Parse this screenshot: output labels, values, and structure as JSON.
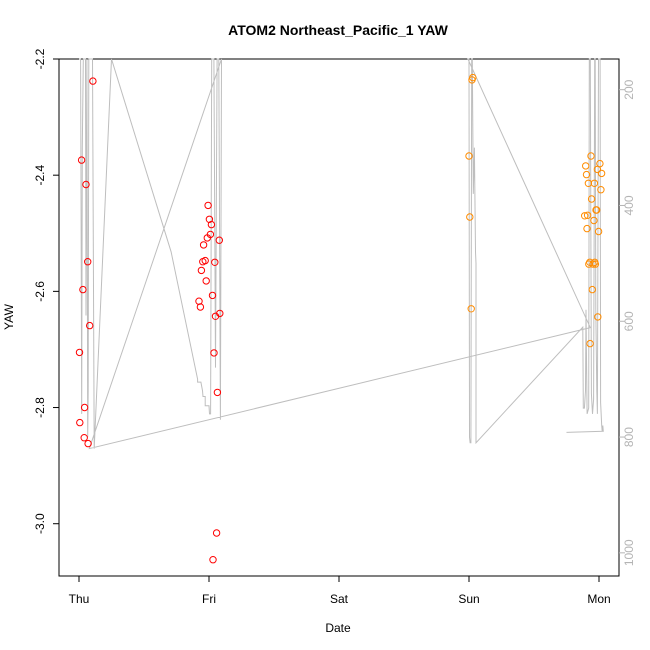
{
  "chart_data": {
    "type": "scatter",
    "title": "ATOM2 Northeast_Pacific_1 YAW",
    "xlabel": "Date",
    "ylabel": "YAW",
    "x_axis": {
      "type": "date",
      "range": [
        "Thu 00:00",
        "Mon 04:00"
      ],
      "tick_labels": [
        "Thu",
        "Fri",
        "Sat",
        "Sun",
        "Mon"
      ],
      "tick_hours": [
        0,
        24,
        48,
        72,
        96
      ]
    },
    "y_axis": {
      "range": [
        -3.09,
        -2.2
      ],
      "ticks": [
        -2.2,
        -2.4,
        -2.6,
        -2.8,
        -3.0
      ],
      "tick_labels": [
        "-2.2",
        "-2.4",
        "-2.6",
        "-2.8",
        "-3.0"
      ]
    },
    "y2_axis": {
      "range": [
        1040,
        147
      ],
      "ticks": [
        200,
        400,
        600,
        800,
        1000
      ],
      "tick_labels": [
        "200",
        "400",
        "600",
        "800",
        "1000"
      ],
      "color": "#b4b4b4"
    },
    "grid": false,
    "colors": {
      "series_red": "#ff0000",
      "series_orange": "#ff8c00",
      "line": "#bebebe",
      "axis": "#000000"
    },
    "series": [
      {
        "color": "#ff0000",
        "points": [
          {
            "x": 0.1,
            "y": -2.705
          },
          {
            "x": 0.15,
            "y": -2.826
          },
          {
            "x": 0.48,
            "y": -2.374
          },
          {
            "x": 0.72,
            "y": -2.597
          },
          {
            "x": 0.96,
            "y": -2.852
          },
          {
            "x": 1.04,
            "y": -2.8
          },
          {
            "x": 1.3,
            "y": -2.416
          },
          {
            "x": 1.6,
            "y": -2.549
          },
          {
            "x": 1.68,
            "y": -2.862
          },
          {
            "x": 1.97,
            "y": -2.659
          },
          {
            "x": 2.56,
            "y": -2.238
          },
          {
            "x": 22.15,
            "y": -2.617
          },
          {
            "x": 22.42,
            "y": -2.627
          },
          {
            "x": 22.6,
            "y": -2.564
          },
          {
            "x": 22.85,
            "y": -2.549
          },
          {
            "x": 23.0,
            "y": -2.52
          },
          {
            "x": 23.29,
            "y": -2.547
          },
          {
            "x": 23.48,
            "y": -2.582
          },
          {
            "x": 23.69,
            "y": -2.508
          },
          {
            "x": 24.25,
            "y": -2.502
          },
          {
            "x": 23.83,
            "y": -2.452
          },
          {
            "x": 24.08,
            "y": -2.476
          },
          {
            "x": 24.45,
            "y": -2.485
          },
          {
            "x": 24.65,
            "y": -2.607
          },
          {
            "x": 24.93,
            "y": -2.706
          },
          {
            "x": 25.07,
            "y": -2.55
          },
          {
            "x": 25.2,
            "y": -2.643
          },
          {
            "x": 25.41,
            "y": -3.016
          },
          {
            "x": 25.55,
            "y": -2.774
          },
          {
            "x": 25.9,
            "y": -2.512
          },
          {
            "x": 26.0,
            "y": -2.638
          },
          {
            "x": 24.74,
            "y": -3.062
          }
        ]
      },
      {
        "color": "#ff8c00",
        "points": [
          {
            "x": 72.0,
            "y": -2.367
          },
          {
            "x": 72.14,
            "y": -2.472
          },
          {
            "x": 72.4,
            "y": -2.63
          },
          {
            "x": 72.55,
            "y": -2.236
          },
          {
            "x": 72.7,
            "y": -2.232
          },
          {
            "x": 93.36,
            "y": -2.47
          },
          {
            "x": 93.55,
            "y": -2.384
          },
          {
            "x": 93.7,
            "y": -2.399
          },
          {
            "x": 93.78,
            "y": -2.492
          },
          {
            "x": 93.9,
            "y": -2.469
          },
          {
            "x": 94.04,
            "y": -2.414
          },
          {
            "x": 94.11,
            "y": -2.553
          },
          {
            "x": 94.3,
            "y": -2.55
          },
          {
            "x": 94.36,
            "y": -2.69
          },
          {
            "x": 94.53,
            "y": -2.367
          },
          {
            "x": 94.64,
            "y": -2.441
          },
          {
            "x": 94.76,
            "y": -2.597
          },
          {
            "x": 94.92,
            "y": -2.553
          },
          {
            "x": 95.05,
            "y": -2.478
          },
          {
            "x": 95.15,
            "y": -2.414
          },
          {
            "x": 95.2,
            "y": -2.55
          },
          {
            "x": 95.33,
            "y": -2.553
          },
          {
            "x": 95.45,
            "y": -2.46
          },
          {
            "x": 95.58,
            "y": -2.46
          },
          {
            "x": 95.7,
            "y": -2.39
          },
          {
            "x": 95.78,
            "y": -2.644
          },
          {
            "x": 95.93,
            "y": -2.497
          },
          {
            "x": 96.17,
            "y": -2.38
          },
          {
            "x": 96.35,
            "y": -2.425
          },
          {
            "x": 96.48,
            "y": -2.397
          }
        ]
      }
    ],
    "y2_line": [
      [
        0.0,
        145
      ],
      [
        0.3,
        145
      ],
      [
        0.5,
        760
      ],
      [
        0.6,
        300
      ],
      [
        0.8,
        145
      ],
      [
        1.2,
        145
      ],
      [
        1.3,
        590
      ],
      [
        1.45,
        145
      ],
      [
        1.6,
        800
      ],
      [
        1.7,
        720
      ],
      [
        1.8,
        145
      ],
      [
        2.5,
        145
      ],
      [
        2.8,
        820
      ],
      [
        6.0,
        145
      ],
      [
        17.0,
        480
      ],
      [
        21.9,
        700
      ],
      [
        21.9,
        705
      ],
      [
        22.5,
        705
      ],
      [
        22.8,
        720
      ],
      [
        22.9,
        730
      ],
      [
        23.3,
        730
      ],
      [
        23.3,
        746
      ],
      [
        23.7,
        746
      ],
      [
        24.0,
        746
      ],
      [
        24.1,
        760
      ],
      [
        24.3,
        760
      ],
      [
        24.5,
        145
      ],
      [
        24.9,
        145
      ],
      [
        25.2,
        680
      ],
      [
        25.5,
        145
      ],
      [
        25.6,
        145
      ],
      [
        25.8,
        145
      ],
      [
        26.1,
        770
      ],
      [
        26.3,
        145
      ],
      [
        1.9,
        820
      ],
      [
        94.4,
        611
      ],
      [
        71.8,
        145
      ],
      [
        72.0,
        145
      ],
      [
        72.1,
        800
      ],
      [
        72.2,
        810
      ],
      [
        72.35,
        810
      ],
      [
        72.5,
        145
      ],
      [
        72.6,
        145
      ],
      [
        72.8,
        380
      ],
      [
        73.0,
        300
      ],
      [
        73.2,
        480
      ],
      [
        73.3,
        500
      ],
      [
        73.3,
        810
      ],
      [
        93.0,
        610
      ],
      [
        93.1,
        750
      ],
      [
        93.3,
        750
      ],
      [
        93.5,
        720
      ],
      [
        93.6,
        580
      ],
      [
        93.8,
        760
      ],
      [
        94.1,
        750
      ],
      [
        94.2,
        145
      ],
      [
        94.4,
        145
      ],
      [
        94.6,
        725
      ],
      [
        94.8,
        760
      ],
      [
        95.0,
        735
      ],
      [
        95.2,
        145
      ],
      [
        95.3,
        145
      ],
      [
        95.4,
        580
      ],
      [
        95.6,
        720
      ],
      [
        95.7,
        760
      ],
      [
        95.9,
        145
      ],
      [
        96.2,
        145
      ],
      [
        96.3,
        740
      ],
      [
        96.5,
        780
      ],
      [
        96.6,
        790
      ],
      [
        96.7,
        780
      ],
      [
        96.8,
        790
      ],
      [
        90.0,
        792
      ]
    ]
  }
}
